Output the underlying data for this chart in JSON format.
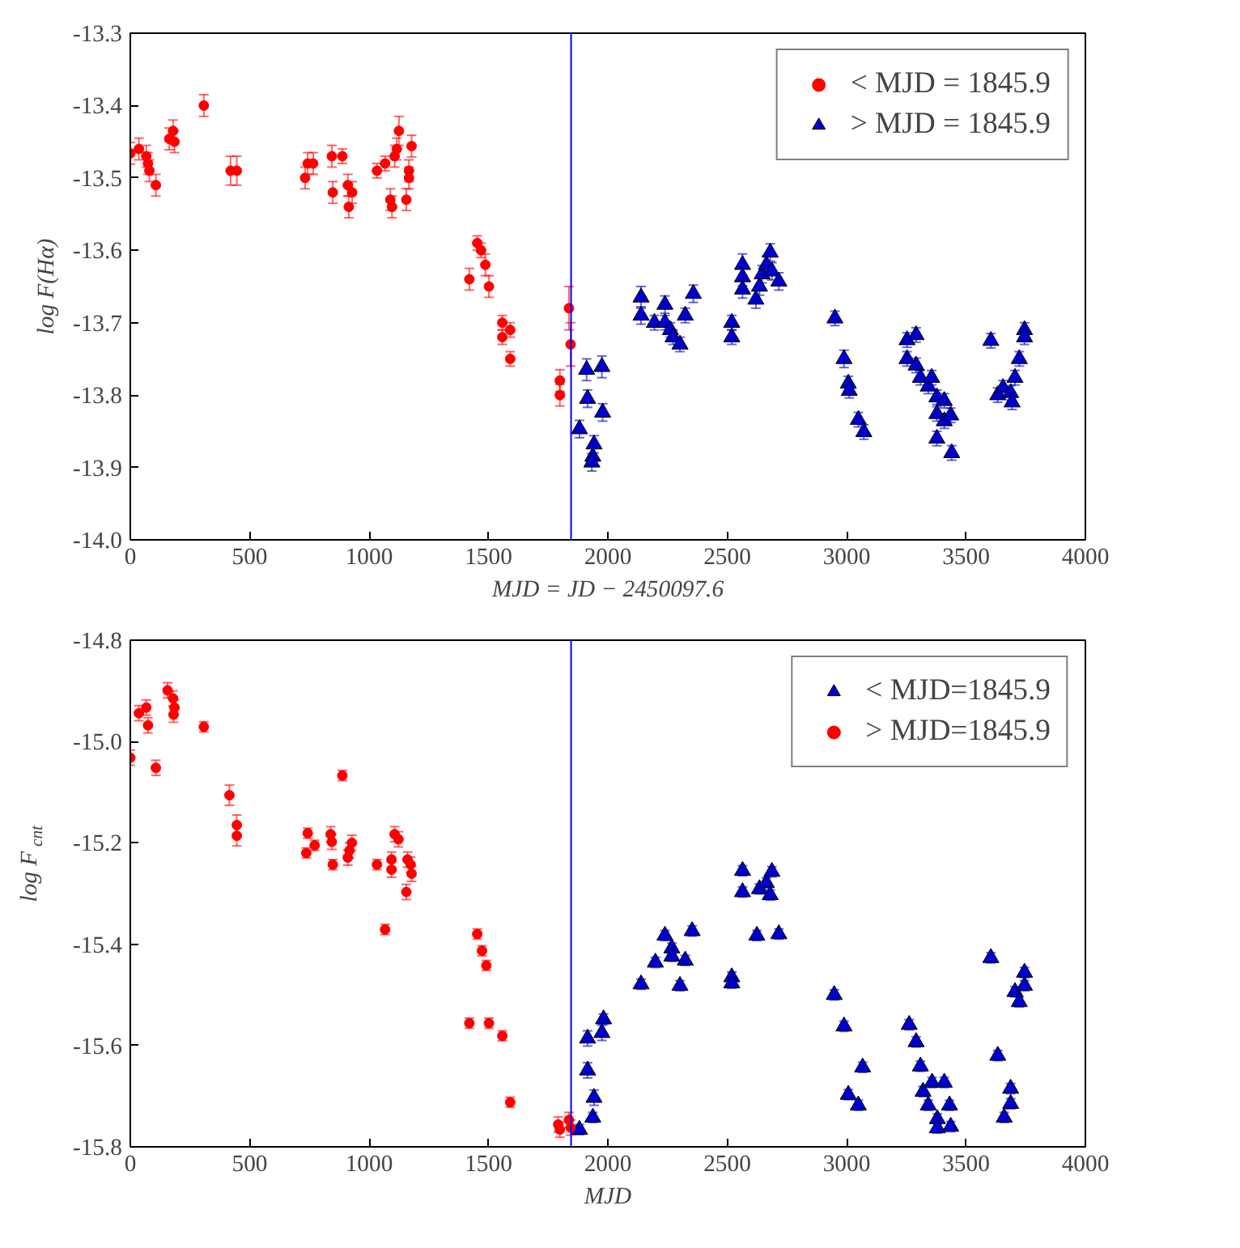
{
  "chart_data": [
    {
      "type": "scatter",
      "xlabel": "MJD = JD − 2450097.6",
      "ylabel": "log F(Hα)",
      "xlim": [
        0,
        4000
      ],
      "ylim": [
        -14.0,
        -13.3
      ],
      "xticks": [
        0,
        500,
        1000,
        1500,
        2000,
        2500,
        3000,
        3500,
        4000
      ],
      "yticks": [
        {
          "value": -14.0,
          "label": "-14.0"
        },
        -13.9,
        -13.8,
        -13.7,
        -13.6,
        -13.5,
        -13.4,
        -13.3
      ],
      "grid": false,
      "legend": "top right",
      "ref_lines": [
        {
          "axis": "x",
          "value": 1845.9,
          "color": "#0000ff"
        }
      ],
      "series": [
        {
          "name": "< MJD = 1845.9",
          "color": "#ff0000",
          "marker": "circle",
          "x": [
            0,
            36,
            67,
            74,
            80,
            107,
            163,
            179,
            185,
            308,
            420,
            446,
            732,
            743,
            766,
            844,
            848,
            888,
            911,
            929,
            915,
            1033,
            1067,
            1089,
            1096,
            1107,
            1116,
            1125,
            1156,
            1167,
            1167,
            1178,
            1420,
            1453,
            1469,
            1487,
            1502,
            1558,
            1558,
            1591,
            1591,
            1799,
            1799,
            1837,
            1844
          ],
          "values": [
            -13.466,
            -13.46,
            -13.47,
            -13.48,
            -13.49,
            -13.51,
            -13.446,
            -13.435,
            -13.45,
            -13.4,
            -13.49,
            -13.49,
            -13.5,
            -13.48,
            -13.48,
            -13.47,
            -13.52,
            -13.47,
            -13.51,
            -13.52,
            -13.54,
            -13.49,
            -13.48,
            -13.53,
            -13.54,
            -13.47,
            -13.46,
            -13.435,
            -13.53,
            -13.5,
            -13.49,
            -13.456,
            -13.64,
            -13.59,
            -13.6,
            -13.62,
            -13.65,
            -13.7,
            -13.72,
            -13.71,
            -13.75,
            -13.78,
            -13.8,
            -13.68,
            -13.73
          ],
          "errors": [
            0.015,
            0.015,
            0.015,
            0.015,
            0.015,
            0.015,
            0.015,
            0.015,
            0.015,
            0.015,
            0.02,
            0.02,
            0.015,
            0.015,
            0.015,
            0.015,
            0.015,
            0.01,
            0.015,
            0.015,
            0.015,
            0.01,
            0.01,
            0.015,
            0.015,
            0.015,
            0.015,
            0.02,
            0.015,
            0.015,
            0.015,
            0.015,
            0.015,
            0.01,
            0.01,
            0.015,
            0.015,
            0.01,
            0.01,
            0.01,
            0.01,
            0.015,
            0.015,
            0.03,
            0.03
          ]
        },
        {
          "name": "> MJD = 1845.9",
          "color": "#0000cc",
          "marker": "triangle",
          "x": [
            1881,
            1911,
            1915,
            1942,
            1937,
            1933,
            1975,
            1978,
            2139,
            2139,
            2195,
            2239,
            2239,
            2262,
            2273,
            2302,
            2324,
            2358,
            2519,
            2519,
            2564,
            2564,
            2564,
            2620,
            2635,
            2646,
            2664,
            2680,
            2687,
            2716,
            2951,
            2989,
            3007,
            3011,
            3049,
            3072,
            3253,
            3253,
            3291,
            3291,
            3309,
            3342,
            3356,
            3378,
            3378,
            3378,
            3409,
            3409,
            3436,
            3440,
            3604,
            3633,
            3655,
            3687,
            3693,
            3705,
            3723,
            3745,
            3745
          ],
          "values": [
            -13.847,
            -13.765,
            -13.805,
            -13.868,
            -13.885,
            -13.893,
            -13.761,
            -13.824,
            -13.665,
            -13.69,
            -13.7,
            -13.675,
            -13.7,
            -13.71,
            -13.72,
            -13.73,
            -13.69,
            -13.66,
            -13.7,
            -13.72,
            -13.62,
            -13.637,
            -13.654,
            -13.668,
            -13.65,
            -13.633,
            -13.62,
            -13.603,
            -13.629,
            -13.643,
            -13.694,
            -13.75,
            -13.784,
            -13.794,
            -13.834,
            -13.851,
            -13.724,
            -13.75,
            -13.717,
            -13.759,
            -13.776,
            -13.788,
            -13.776,
            -13.803,
            -13.826,
            -13.86,
            -13.808,
            -13.836,
            -13.828,
            -13.88,
            -13.725,
            -13.8,
            -13.79,
            -13.797,
            -13.81,
            -13.776,
            -13.75,
            -13.71,
            -13.72
          ],
          "errors": [
            0.012,
            0.015,
            0.012,
            0.012,
            0.012,
            0.012,
            0.015,
            0.012,
            0.015,
            0.012,
            0.01,
            0.012,
            0.01,
            0.01,
            0.01,
            0.01,
            0.01,
            0.012,
            0.01,
            0.01,
            0.015,
            0.012,
            0.012,
            0.012,
            0.012,
            0.012,
            0.012,
            0.012,
            0.012,
            0.012,
            0.01,
            0.012,
            0.01,
            0.01,
            0.01,
            0.01,
            0.01,
            0.01,
            0.01,
            0.01,
            0.01,
            0.01,
            0.01,
            0.01,
            0.01,
            0.01,
            0.01,
            0.01,
            0.01,
            0.01,
            0.01,
            0.01,
            0.01,
            0.01,
            0.01,
            0.01,
            0.01,
            0.01,
            0.01
          ]
        }
      ]
    },
    {
      "type": "scatter",
      "xlabel": "MJD",
      "ylabel": "log F$_{cnt}$",
      "xlim": [
        0,
        4000
      ],
      "ylim": [
        -15.8,
        -14.8
      ],
      "xticks": [
        0,
        500,
        1000,
        1500,
        2000,
        2500,
        3000,
        3500,
        4000
      ],
      "yticks": [
        -15.8,
        -15.6,
        -15.4,
        -15.2,
        {
          "value": -15.0,
          "label": "-15.0"
        },
        -14.8
      ],
      "grid": false,
      "legend": "top right",
      "ref_lines": [
        {
          "axis": "x",
          "value": 1845.9,
          "color": "#0000ff"
        }
      ],
      "series": [
        {
          "name": "< MJD=1845.9",
          "color": "#0000cc",
          "marker": "triangle",
          "x": [
            1881,
            1915,
            1915,
            1942,
            1937,
            1975,
            1982,
            2139,
            2199,
            2239,
            2268,
            2268,
            2302,
            2324,
            2353,
            2519,
            2519,
            2564,
            2564,
            2624,
            2635,
            2664,
            2680,
            2687,
            2716,
            2948,
            2989,
            3007,
            3049,
            3067,
            3257,
            3262,
            3291,
            3309,
            3320,
            3342,
            3358,
            3380,
            3380,
            3409,
            3431,
            3436,
            3604,
            3629,
            3633,
            3660,
            3687,
            3687,
            3705,
            3723,
            3745,
            3745
          ],
          "values": [
            -15.766,
            -15.649,
            -15.586,
            -15.703,
            -15.742,
            -15.575,
            -15.548,
            -15.479,
            -15.436,
            -15.383,
            -15.408,
            -15.424,
            -15.482,
            -15.432,
            -15.374,
            -15.465,
            -15.477,
            -15.255,
            -15.297,
            -15.383,
            -15.291,
            -15.279,
            -15.303,
            -15.257,
            -15.38,
            -15.5,
            -15.562,
            -15.697,
            -15.718,
            -15.643,
            null,
            -15.559,
            -15.593,
            -15.641,
            -15.691,
            -15.718,
            -15.673,
            -15.745,
            -15.763,
            -15.673,
            -15.718,
            -15.76,
            -15.427,
            null,
            -15.62,
            -15.742,
            -15.685,
            -15.715,
            -15.494,
            -15.514,
            -15.482,
            -15.456
          ],
          "errors": [
            0.01,
            0.015,
            0.015,
            0.015,
            0.01,
            0.015,
            0.01,
            0.01,
            0.01,
            0.01,
            0.01,
            0.01,
            0.01,
            0.01,
            0.01,
            0.01,
            0.01,
            0.01,
            0.01,
            0.01,
            0.01,
            0.01,
            0.01,
            0.01,
            0.01,
            0.01,
            0.01,
            0.01,
            0.01,
            0.01,
            null,
            0.01,
            0.01,
            0.01,
            0.01,
            0.01,
            0.01,
            0.01,
            0.01,
            0.01,
            0.01,
            0.01,
            0.01,
            null,
            0.01,
            0.01,
            0.01,
            0.01,
            0.01,
            0.01,
            0.01,
            0.01
          ]
        },
        {
          "name": "> MJD=1845.9",
          "color": "#ff0000",
          "marker": "circle",
          "x": [
            0,
            36,
            67,
            74,
            107,
            156,
            179,
            185,
            181,
            308,
            415,
            446,
            446,
            743,
            737,
            772,
            839,
            844,
            848,
            888,
            911,
            918,
            928,
            1033,
            1067,
            1094,
            1094,
            1107,
            1123,
            1161,
            1174,
            1178,
            1156,
            1420,
            1453,
            1473,
            1491,
            1502,
            1558,
            1591,
            1792,
            1799,
            1837,
            1844
          ],
          "values": [
            -15.032,
            -14.944,
            -14.933,
            -14.968,
            -15.052,
            -14.899,
            -14.915,
            -14.933,
            -14.947,
            -14.971,
            -15.106,
            -15.165,
            -15.186,
            -15.181,
            -15.22,
            -15.205,
            -15.183,
            -15.198,
            -15.243,
            -15.067,
            -15.229,
            -15.215,
            -15.2,
            -15.243,
            -15.371,
            -15.233,
            -15.253,
            -15.183,
            -15.193,
            -15.233,
            -15.243,
            -15.261,
            -15.297,
            -15.556,
            -15.38,
            -15.413,
            -15.442,
            -15.556,
            -15.581,
            -15.712,
            -15.756,
            -15.766,
            -15.747,
            -15.762
          ],
          "errors": [
            0.015,
            0.015,
            0.015,
            0.015,
            0.015,
            0.015,
            0.015,
            0.015,
            0.015,
            0.01,
            0.02,
            0.02,
            0.02,
            0.01,
            0.01,
            0.01,
            0.015,
            0.015,
            0.01,
            0.01,
            0.015,
            0.015,
            0.015,
            0.01,
            0.01,
            0.015,
            0.015,
            0.015,
            0.015,
            0.015,
            0.015,
            0.015,
            0.015,
            0.01,
            0.01,
            0.01,
            0.01,
            0.01,
            0.01,
            0.01,
            0.015,
            0.015,
            0.015,
            0.015
          ]
        }
      ]
    }
  ]
}
